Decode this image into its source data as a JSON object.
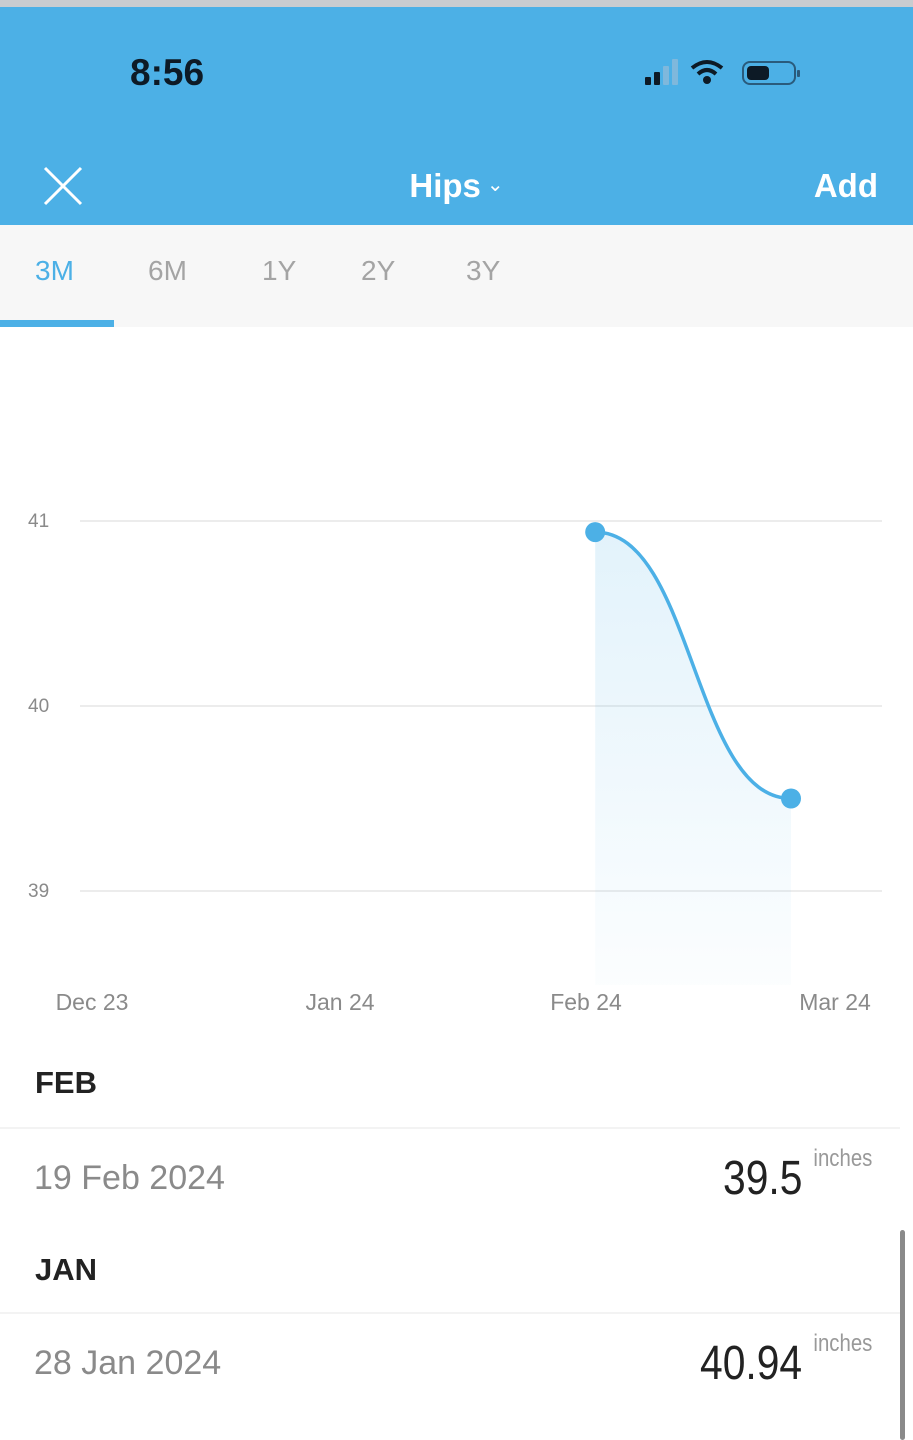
{
  "status_bar": {
    "time": "8:56",
    "icons": [
      "cellular-signal-icon",
      "wifi-icon",
      "battery-icon"
    ]
  },
  "header": {
    "title": "Hips",
    "close_icon": "close-icon",
    "dropdown_icon": "chevron-down-icon",
    "add_label": "Add",
    "color": "#4cb0e6"
  },
  "tabs": [
    {
      "label": "3M",
      "active": true
    },
    {
      "label": "6M"
    },
    {
      "label": "1Y"
    },
    {
      "label": "2Y"
    },
    {
      "label": "3Y"
    }
  ],
  "chart_data": {
    "type": "area",
    "xlabel": "",
    "ylabel": "",
    "x_ticks": [
      "Dec 23",
      "Jan 24",
      "Feb 24",
      "Mar 24"
    ],
    "y_ticks": [
      39,
      40,
      41
    ],
    "grid": true,
    "series": [
      {
        "x": [
          "2024-01-28",
          "2024-02-19"
        ],
        "values": [
          40.94,
          39.5
        ],
        "color": "#4cb0e6"
      }
    ]
  },
  "entries": [
    {
      "month": "FEB",
      "date": "19 Feb 2024",
      "value": "39.5",
      "unit": "inches"
    },
    {
      "month": "JAN",
      "date": "28 Jan 2024",
      "value": "40.94",
      "unit": "inches"
    }
  ]
}
